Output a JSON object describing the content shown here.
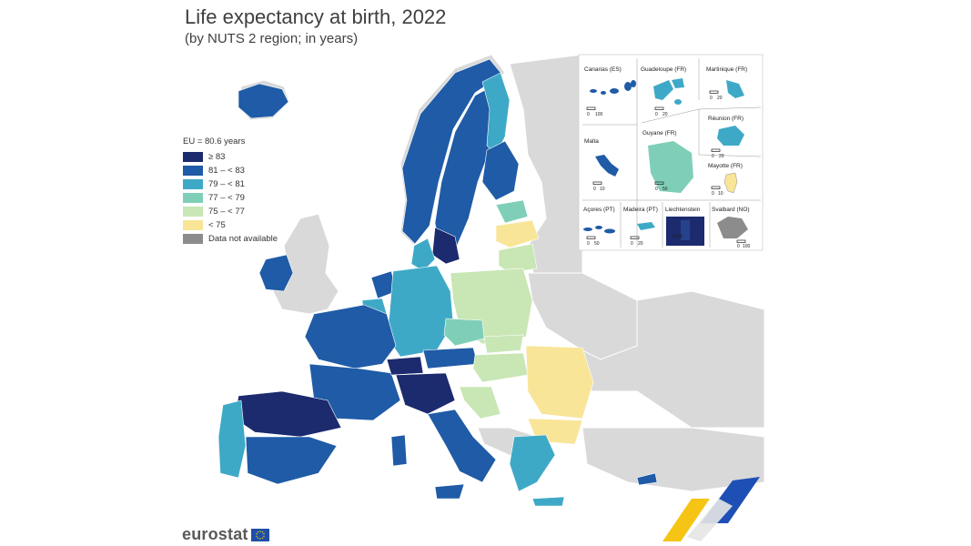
{
  "title": "Life expectancy at birth, 2022",
  "subtitle": "(by NUTS 2 region; in years)",
  "legend": {
    "title": "EU = 80.6 years",
    "classes": [
      {
        "label": "≥ 83",
        "color": "#1c2a6e"
      },
      {
        "label": "81 – < 83",
        "color": "#1f5ba6"
      },
      {
        "label": "79 – < 81",
        "color": "#3ea9c6"
      },
      {
        "label": "77 – < 79",
        "color": "#7fcfb8"
      },
      {
        "label": "75 – < 77",
        "color": "#c9e6b5"
      },
      {
        "label": "< 75",
        "color": "#f8e597"
      },
      {
        "label": "Data not available",
        "color": "#8c8c8c"
      }
    ]
  },
  "insets": [
    {
      "name": "Canarias (ES)",
      "scale": [
        "0",
        "100"
      ]
    },
    {
      "name": "Guadeloupe (FR)",
      "scale": [
        "0",
        "20"
      ]
    },
    {
      "name": "Martinique (FR)",
      "scale": [
        "0",
        "20"
      ]
    },
    {
      "name": "Réunion (FR)",
      "scale": [
        "0",
        "20"
      ]
    },
    {
      "name": "Malta",
      "scale": [
        "0",
        "10"
      ]
    },
    {
      "name": "Guyane (FR)",
      "scale": [
        "0",
        "50"
      ]
    },
    {
      "name": "Mayotte (FR)",
      "scale": [
        "0",
        "10"
      ]
    },
    {
      "name": "Açores (PT)",
      "scale": [
        "0",
        "50"
      ]
    },
    {
      "name": "Madeira (PT)",
      "scale": [
        "0",
        "20"
      ]
    },
    {
      "name": "Liechtenstein",
      "scale": []
    },
    {
      "name": "Svalbard (NO)",
      "scale": [
        "0",
        "100"
      ]
    }
  ],
  "logo": {
    "text": "eurostat"
  },
  "colors": {
    "sea": "#ffffff",
    "non_eu_land": "#d9d9d9",
    "border": "#ffffff"
  }
}
